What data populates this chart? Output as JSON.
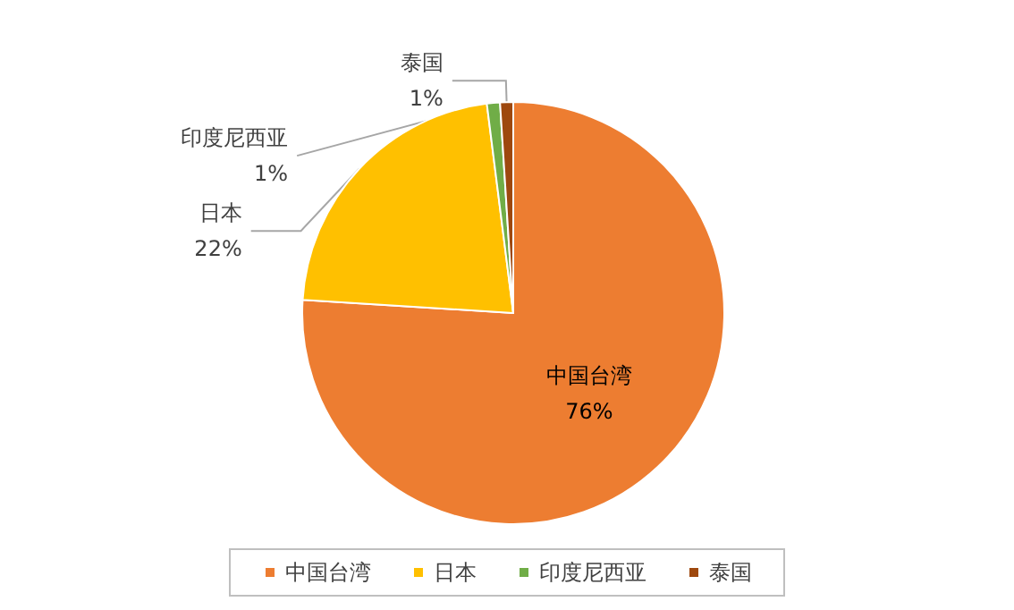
{
  "chart_data": {
    "type": "pie",
    "categories": [
      "中国台湾",
      "日本",
      "印度尼西亚",
      "泰国"
    ],
    "values": [
      76,
      22,
      1,
      1
    ],
    "value_labels": [
      "76%",
      "22%",
      "1%",
      "1%"
    ],
    "colors": [
      "#ed7d31",
      "#ffc000",
      "#70ad47",
      "#9e480e"
    ],
    "legend": "bottom"
  }
}
